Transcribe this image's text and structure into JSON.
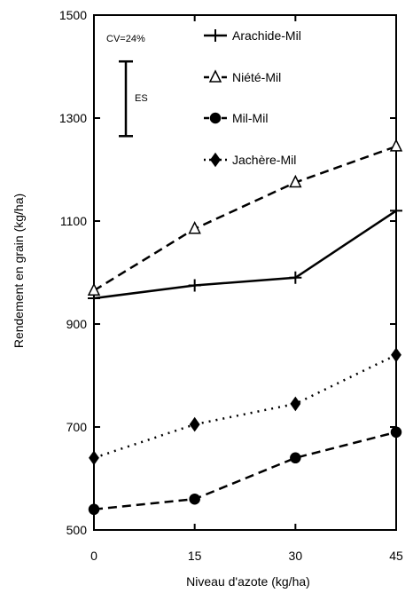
{
  "chart_data": {
    "type": "line",
    "title": "",
    "xlabel": "Niveau d'azote (kg/ha)",
    "ylabel": "Rendement en grain (kg/ha)",
    "x": [
      0,
      15,
      30,
      45
    ],
    "x_tick_labels": [
      "0",
      "15",
      "30",
      "45"
    ],
    "xlim": [
      0,
      45
    ],
    "ylim": [
      500,
      1500
    ],
    "y_ticks": [
      500,
      700,
      900,
      1100,
      1300,
      1500
    ],
    "y_tick_labels": [
      "500",
      "700",
      "900",
      "1100",
      "1300",
      "1500"
    ],
    "grid": false,
    "legend_position": "top-right",
    "series": [
      {
        "name": "Arachide-Mil",
        "values": [
          950,
          975,
          990,
          1120
        ],
        "line_style": "solid",
        "marker": "plus"
      },
      {
        "name": "Niété-Mil",
        "values": [
          965,
          1085,
          1175,
          1245
        ],
        "line_style": "dashed",
        "marker": "triangle"
      },
      {
        "name": "Mil-Mil",
        "values": [
          540,
          560,
          640,
          690
        ],
        "line_style": "dashed",
        "marker": "circle"
      },
      {
        "name": "Jachère-Mil",
        "values": [
          640,
          705,
          745,
          840
        ],
        "line_style": "dotted",
        "marker": "diamond"
      }
    ],
    "annotations": {
      "cv_label": "CV=24%",
      "es_label": "ES",
      "es_bar": {
        "x": 0,
        "y_low": 1265,
        "y_high": 1410
      }
    }
  }
}
